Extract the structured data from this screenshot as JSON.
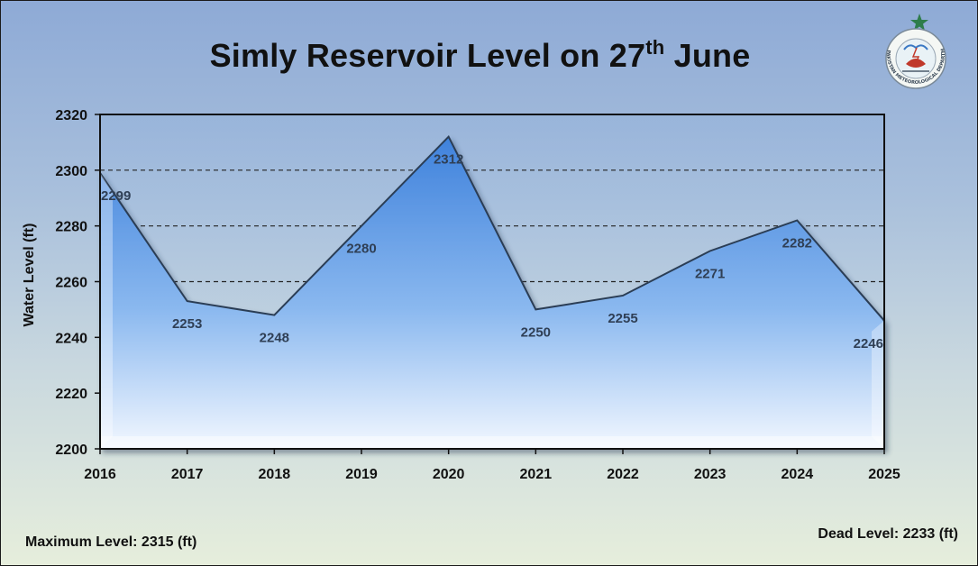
{
  "title_main": "Simly Reservoir Level on 27",
  "title_sup": "th",
  "title_end": " June",
  "footer": {
    "max_level": "Maximum Level: 2315 (ft)",
    "dead_level": "Dead Level: 2233 (ft)"
  },
  "logo": {
    "name": "pakistan-meteorological-department-logo",
    "text": "PAKISTAN METEOROLOGICAL DEPARTMENT"
  },
  "colors": {
    "area_top": "#5b95e0",
    "area_bottom": "#eef4ff",
    "line": "#2c3e55",
    "label": "#2f3f55"
  },
  "chart_data": {
    "type": "area",
    "title": "Simly Reservoir Level on 27th June",
    "xlabel": "",
    "ylabel": "Water Level (ft)",
    "x": [
      "2016",
      "2017",
      "2018",
      "2019",
      "2020",
      "2021",
      "2022",
      "2023",
      "2024",
      "2025"
    ],
    "values": [
      2299,
      2253,
      2248,
      2280,
      2312,
      2250,
      2255,
      2271,
      2282,
      2246
    ],
    "ylim": [
      2200,
      2320
    ],
    "yticks": [
      2200,
      2220,
      2240,
      2260,
      2280,
      2300,
      2320
    ],
    "grid": "dashed horizontal at 2260, 2280, 2300",
    "legend": "none"
  }
}
